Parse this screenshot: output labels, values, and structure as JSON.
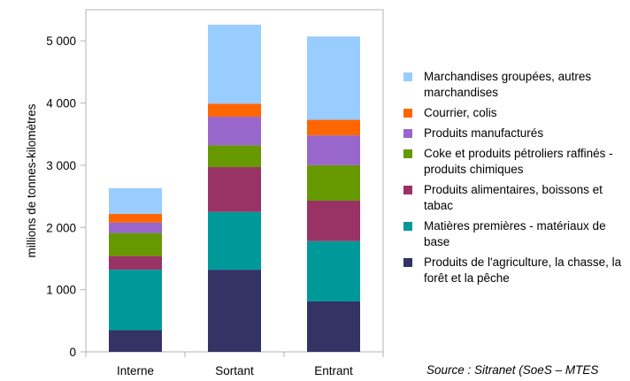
{
  "chart_data": {
    "type": "bar",
    "stacked": true,
    "ylabel": "millions de tonnes-kilomètres",
    "ylim": [
      0,
      5500
    ],
    "yticks": [
      0,
      1000,
      2000,
      3000,
      4000,
      5000
    ],
    "ytick_labels": [
      "0",
      "1 000",
      "2 000",
      "3 000",
      "4 000",
      "5 000"
    ],
    "categories": [
      "Interne",
      "Sortant",
      "Entrant"
    ],
    "grid": false,
    "legend_position": "right",
    "series": [
      {
        "name": "Produits de l'agriculture, la chasse, la forêt et la pêche",
        "color": "#333366",
        "values": [
          350,
          1320,
          810
        ]
      },
      {
        "name": "Matières premières - matériaux de base",
        "color": "#009999",
        "values": [
          970,
          930,
          970
        ]
      },
      {
        "name": "Produits alimentaires, boissons et tabac",
        "color": "#993366",
        "values": [
          220,
          720,
          650
        ]
      },
      {
        "name": "Coke et produits pétroliers raffinés - produits chimiques",
        "color": "#669900",
        "values": [
          370,
          350,
          570
        ]
      },
      {
        "name": "Produits manufacturés",
        "color": "#9966cc",
        "values": [
          170,
          460,
          480
        ]
      },
      {
        "name": "Courrier, colis",
        "color": "#ff6600",
        "values": [
          140,
          210,
          250
        ]
      },
      {
        "name": "Marchandises groupées, autres marchandises",
        "color": "#99ccff",
        "values": [
          410,
          1270,
          1340
        ]
      }
    ]
  },
  "source": "Source : Sitranet (SoeS – MTES"
}
